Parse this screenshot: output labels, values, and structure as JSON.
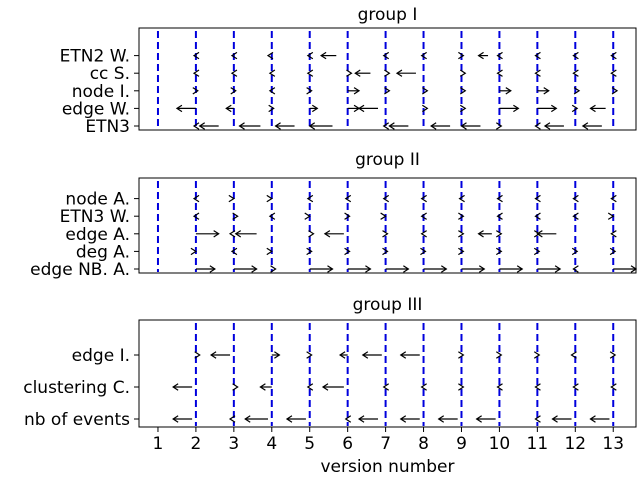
{
  "chart_data": [
    {
      "type": "quiver",
      "title": "group I",
      "xlabel": "",
      "xlim": [
        0.5,
        13.6
      ],
      "categories": [
        "ETN2 W.",
        "cc S.",
        "node I.",
        "edge W.",
        "ETN3"
      ],
      "versions": [
        1,
        2,
        3,
        4,
        5,
        6,
        7,
        8,
        9,
        10,
        11,
        12,
        13
      ],
      "dashed_versions": [
        1,
        2,
        3,
        4,
        5,
        6,
        7,
        8,
        9,
        10,
        11,
        12,
        13
      ],
      "arrows": [
        [
          [
            2,
            -0.05
          ],
          [
            3,
            -0.05
          ],
          [
            4,
            -0.1
          ],
          [
            5,
            -0.05
          ],
          [
            5.7,
            -0.4
          ],
          [
            7,
            -0.05
          ],
          [
            8,
            -0.05
          ],
          [
            9,
            0.05
          ],
          [
            9.7,
            -0.25
          ],
          [
            10,
            -0.05
          ],
          [
            11,
            -0.05
          ],
          [
            12,
            -0.05
          ],
          [
            13,
            -0.05
          ]
        ],
        [
          [
            2,
            -0.05
          ],
          [
            3,
            -0.05
          ],
          [
            4,
            -0.05
          ],
          [
            5,
            -0.05
          ],
          [
            6,
            0.1
          ],
          [
            6.6,
            -0.4
          ],
          [
            7,
            0.1
          ],
          [
            7.8,
            -0.5
          ],
          [
            9,
            0.1
          ],
          [
            10,
            -0.05
          ],
          [
            11,
            -0.05
          ],
          [
            12,
            -0.05
          ],
          [
            13,
            -0.05
          ]
        ],
        [
          [
            2,
            0.05
          ],
          [
            3,
            0.05
          ],
          [
            4,
            -0.05
          ],
          [
            5,
            0.05
          ],
          [
            6,
            0.3
          ],
          [
            7,
            0.1
          ],
          [
            8,
            0.1
          ],
          [
            9,
            0.1
          ],
          [
            10,
            0.3
          ],
          [
            11,
            0.3
          ],
          [
            12,
            0.1
          ],
          [
            13,
            0.1
          ]
        ],
        [
          [
            2,
            -0.5
          ],
          [
            3,
            -0.2
          ],
          [
            4,
            0.05
          ],
          [
            5,
            0.2
          ],
          [
            6,
            0.3
          ],
          [
            6.8,
            -0.5
          ],
          [
            8,
            0.1
          ],
          [
            9,
            0.1
          ],
          [
            10,
            0.5
          ],
          [
            11,
            0.5
          ],
          [
            12,
            0.05
          ],
          [
            12.8,
            -0.4
          ]
        ],
        [
          [
            2,
            -0.05
          ],
          [
            2.6,
            -0.5
          ],
          [
            3.7,
            -0.55
          ],
          [
            4.6,
            -0.5
          ],
          [
            5.6,
            -0.6
          ],
          [
            7,
            -0.05
          ],
          [
            7.6,
            -0.5
          ],
          [
            8.7,
            -0.5
          ],
          [
            9.5,
            -0.5
          ],
          [
            10,
            0.05
          ],
          [
            11,
            -0.05
          ],
          [
            11.7,
            -0.5
          ],
          [
            12.7,
            -0.5
          ]
        ]
      ]
    },
    {
      "type": "quiver",
      "title": "group II",
      "xlabel": "",
      "xlim": [
        0.5,
        13.6
      ],
      "categories": [
        "node A.",
        "ETN3 W.",
        "edge A.",
        "deg A.",
        "edge NB. A."
      ],
      "versions": [
        1,
        2,
        3,
        4,
        5,
        6,
        7,
        8,
        9,
        10,
        11,
        12,
        13
      ],
      "dashed_versions": [
        1,
        2,
        3,
        4,
        5,
        6,
        7,
        8,
        9,
        10,
        11,
        12,
        13
      ],
      "arrows": [
        [
          [
            2,
            -0.05
          ],
          [
            2.9,
            0.1
          ],
          [
            3.9,
            0.1
          ],
          [
            5,
            -0.05
          ],
          [
            6,
            -0.05
          ],
          [
            7,
            -0.05
          ],
          [
            8,
            -0.05
          ],
          [
            9,
            -0.05
          ],
          [
            10,
            -0.05
          ],
          [
            11,
            -0.05
          ],
          [
            12,
            -0.05
          ],
          [
            13,
            -0.05
          ]
        ],
        [
          [
            2,
            -0.05
          ],
          [
            3,
            0.1
          ],
          [
            4,
            -0.05
          ],
          [
            4.9,
            0.1
          ],
          [
            6,
            0.05
          ],
          [
            6.9,
            0.1
          ],
          [
            8,
            -0.05
          ],
          [
            9,
            0.05
          ],
          [
            10,
            -0.05
          ],
          [
            11,
            -0.05
          ],
          [
            12,
            -0.05
          ],
          [
            12.9,
            0.1
          ]
        ],
        [
          [
            2,
            0.6
          ],
          [
            3,
            -0.1
          ],
          [
            3.6,
            -0.55
          ],
          [
            5,
            0.1
          ],
          [
            5.9,
            -0.5
          ],
          [
            7,
            0.05
          ],
          [
            8,
            -0.05
          ],
          [
            9,
            0.05
          ],
          [
            9.8,
            -0.35
          ],
          [
            10,
            0.05
          ],
          [
            11,
            0.05
          ],
          [
            11.5,
            -0.5
          ],
          [
            13,
            -0.05
          ]
        ],
        [
          [
            1.9,
            0.1
          ],
          [
            3,
            -0.05
          ],
          [
            3.9,
            0.1
          ],
          [
            5,
            0.05
          ],
          [
            6,
            0.05
          ],
          [
            7,
            0.05
          ],
          [
            8,
            0.05
          ],
          [
            9,
            0.05
          ],
          [
            10,
            0.05
          ],
          [
            11,
            0.05
          ],
          [
            12,
            0.05
          ],
          [
            13,
            0.05
          ]
        ],
        [
          [
            2,
            0.5
          ],
          [
            3,
            0.6
          ],
          [
            4,
            0.1
          ],
          [
            5,
            0.6
          ],
          [
            6,
            0.6
          ],
          [
            7,
            0.6
          ],
          [
            8,
            0.6
          ],
          [
            9,
            0.6
          ],
          [
            10,
            0.6
          ],
          [
            11,
            0.6
          ],
          [
            12,
            -0.05
          ],
          [
            13,
            0.6
          ]
        ]
      ]
    },
    {
      "type": "quiver",
      "title": "group III",
      "xlabel": "version number",
      "xlim": [
        0.5,
        13.6
      ],
      "categories": [
        "edge I.",
        "clustering C.",
        "nb of events"
      ],
      "versions": [
        1,
        2,
        3,
        4,
        5,
        6,
        7,
        8,
        9,
        10,
        11,
        12,
        13
      ],
      "dashed_versions": [
        2,
        3,
        4,
        5,
        6,
        7,
        8,
        9,
        10,
        11,
        12,
        13
      ],
      "arrows": [
        [
          [
            2,
            0.1
          ],
          [
            2.9,
            -0.5
          ],
          [
            4,
            0.2
          ],
          [
            5,
            0.05
          ],
          [
            6,
            -0.2
          ],
          [
            6.9,
            -0.5
          ],
          [
            7.9,
            -0.5
          ],
          [
            9,
            0.05
          ],
          [
            10,
            0.05
          ],
          [
            11,
            0.05
          ],
          [
            12,
            -0.1
          ],
          [
            13,
            0.05
          ]
        ],
        [
          [
            1.9,
            -0.5
          ],
          [
            3,
            0.1
          ],
          [
            4,
            -0.3
          ],
          [
            5,
            -0.05
          ],
          [
            5.9,
            -0.55
          ],
          [
            7,
            -0.05
          ],
          [
            8,
            -0.05
          ],
          [
            9,
            0.05
          ],
          [
            10,
            -0.05
          ],
          [
            11,
            -0.05
          ],
          [
            12,
            -0.05
          ],
          [
            13,
            -0.05
          ]
        ],
        [
          [
            1.9,
            -0.5
          ],
          [
            3,
            -0.1
          ],
          [
            3.9,
            -0.6
          ],
          [
            4.9,
            -0.5
          ],
          [
            6,
            -0.05
          ],
          [
            6.8,
            -0.5
          ],
          [
            7.9,
            -0.5
          ],
          [
            8.9,
            -0.5
          ],
          [
            9.9,
            -0.5
          ],
          [
            11,
            -0.05
          ],
          [
            11.9,
            -0.5
          ],
          [
            12.9,
            -0.5
          ]
        ]
      ]
    }
  ],
  "style": {
    "dash_color": "#0000dd",
    "arrow_color": "#000000",
    "axis_color": "#000000"
  }
}
